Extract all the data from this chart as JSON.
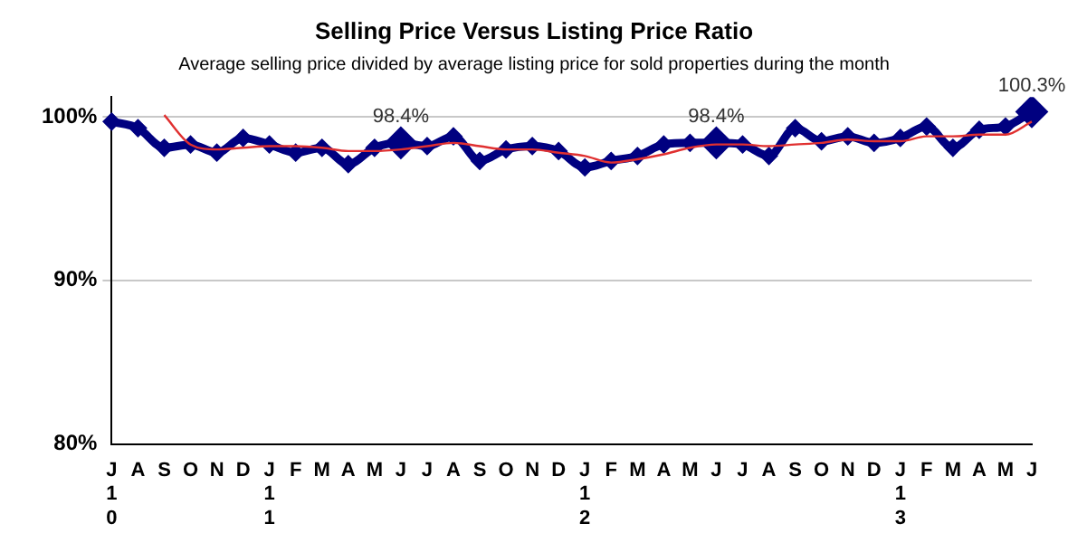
{
  "chart_data": {
    "type": "line",
    "title": "Selling Price Versus Listing Price Ratio",
    "subtitle": "Average selling price divided by average listing price for sold properties during the month",
    "categories": [
      "J\n1\n0",
      "A",
      "S",
      "O",
      "N",
      "D",
      "J\n1\n1",
      "F",
      "M",
      "A",
      "M",
      "J",
      "J",
      "A",
      "S",
      "O",
      "N",
      "D",
      "J\n1\n2",
      "F",
      "M",
      "A",
      "M",
      "J",
      "J",
      "A",
      "S",
      "O",
      "N",
      "D",
      "J\n1\n3",
      "F",
      "M",
      "A",
      "M",
      "J"
    ],
    "series": [
      {
        "color": "#000080",
        "marker": "diamond",
        "values": [
          99.7,
          99.3,
          98.1,
          98.3,
          97.8,
          98.7,
          98.3,
          97.8,
          98.1,
          97.1,
          98.1,
          98.4,
          98.2,
          98.8,
          97.3,
          98.0,
          98.2,
          97.9,
          96.9,
          97.3,
          97.6,
          98.3,
          98.4,
          98.4,
          98.3,
          97.6,
          99.3,
          98.5,
          98.8,
          98.4,
          98.7,
          99.4,
          98.1,
          99.2,
          99.4,
          100.3
        ],
        "value_labels": [
          null,
          null,
          null,
          null,
          null,
          null,
          null,
          null,
          null,
          null,
          null,
          "98.4%",
          null,
          null,
          null,
          null,
          null,
          null,
          null,
          null,
          null,
          null,
          null,
          "98.4%",
          null,
          null,
          null,
          null,
          null,
          null,
          null,
          null,
          null,
          null,
          null,
          "100.3%"
        ]
      },
      {
        "color": "#e03030",
        "values": [
          null,
          null,
          100.1,
          98.3,
          98.0,
          98.1,
          98.2,
          98.2,
          98.1,
          97.9,
          97.9,
          98.0,
          98.2,
          98.4,
          98.2,
          98.0,
          98.0,
          97.8,
          97.6,
          97.2,
          97.4,
          97.7,
          98.1,
          98.3,
          98.3,
          98.2,
          98.3,
          98.4,
          98.6,
          98.5,
          98.5,
          98.8,
          98.8,
          98.9,
          98.9,
          99.7
        ]
      }
    ],
    "ylim": [
      80,
      101.2
    ],
    "yticks": [
      {
        "value": 80,
        "label": "80%"
      },
      {
        "value": 90,
        "label": "90%"
      },
      {
        "value": 100,
        "label": "100%"
      }
    ],
    "grid": "y",
    "legend": false
  }
}
